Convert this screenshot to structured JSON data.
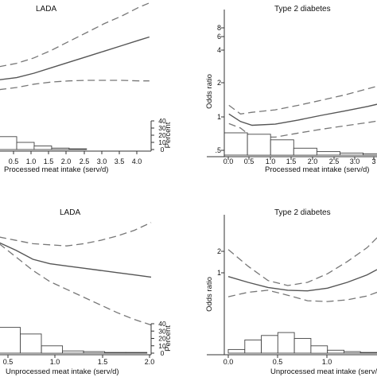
{
  "chart_data": [
    {
      "type": "line",
      "title": "LADA",
      "xlabel": "Processed meat intake (serv/d)",
      "ylabel": "",
      "x_ticks": [
        "0.5",
        "1.0",
        "1.5",
        "2.0",
        "2.5",
        "3.0",
        "3.5",
        "4.0"
      ],
      "y_ticks": [],
      "xlim": [
        0.0,
        4.35
      ],
      "ylim": [
        0.0,
        1.0
      ],
      "series": [
        {
          "role": "estimate",
          "style": "solid",
          "x": [
            0.0,
            0.5,
            1.0,
            1.5,
            2.0,
            2.5,
            3.0,
            3.5,
            4.0,
            4.3
          ],
          "y": [
            0.36,
            0.38,
            0.42,
            0.47,
            0.52,
            0.57,
            0.62,
            0.67,
            0.72,
            0.75
          ]
        },
        {
          "role": "upper_ci",
          "style": "dashed",
          "x": [
            0.0,
            0.5,
            1.0,
            1.5,
            2.0,
            2.5,
            3.0,
            3.5,
            4.0,
            4.3
          ],
          "y": [
            0.48,
            0.51,
            0.56,
            0.63,
            0.71,
            0.79,
            0.87,
            0.94,
            1.02,
            1.06
          ]
        },
        {
          "role": "lower_ci",
          "style": "dashed",
          "x": [
            0.0,
            0.5,
            1.0,
            1.5,
            2.0,
            2.5,
            3.0,
            3.5,
            4.0,
            4.3
          ],
          "y": [
            0.27,
            0.29,
            0.32,
            0.34,
            0.35,
            0.355,
            0.355,
            0.355,
            0.35,
            0.35
          ]
        }
      ],
      "histogram": {
        "ylabel": "Percent",
        "y_ticks": [
          "0",
          "10",
          "20",
          "30",
          "40"
        ],
        "ylim": [
          0,
          40
        ],
        "bin_width": 0.5,
        "bins": [
          {
            "x0": 0.0,
            "value": 18
          },
          {
            "x0": 0.5,
            "value": 10
          },
          {
            "x0": 1.0,
            "value": 5
          },
          {
            "x0": 1.5,
            "value": 2
          },
          {
            "x0": 2.0,
            "value": 1
          }
        ]
      }
    },
    {
      "type": "line",
      "title": "Type 2 diabetes",
      "xlabel": "Processed meat intake (serv/d)",
      "ylabel": "Odds ratio",
      "x_ticks": [
        "0.0",
        "0.5",
        "1.0",
        "1.5",
        "2.0",
        "2.5",
        "3.0",
        "3"
      ],
      "y_ticks": [
        ".5",
        "1",
        "2",
        "4",
        "6",
        "8"
      ],
      "xlim": [
        -0.1,
        3.2
      ],
      "ylim": [
        0.45,
        10.0
      ],
      "log_y": true,
      "series": [
        {
          "role": "estimate",
          "style": "solid",
          "x": [
            0.0,
            0.25,
            0.5,
            1.0,
            1.5,
            2.0,
            2.5,
            3.0,
            3.2
          ],
          "y": [
            1.08,
            0.92,
            0.85,
            0.87,
            0.95,
            1.05,
            1.15,
            1.27,
            1.33
          ]
        },
        {
          "role": "upper_ci",
          "style": "dashed",
          "x": [
            0.0,
            0.25,
            0.5,
            1.0,
            1.5,
            2.0,
            2.5,
            3.0,
            3.2
          ],
          "y": [
            1.3,
            1.08,
            1.12,
            1.18,
            1.3,
            1.45,
            1.62,
            1.85,
            1.95
          ]
        },
        {
          "role": "lower_ci",
          "style": "dashed",
          "x": [
            0.0,
            0.25,
            0.5,
            1.0,
            1.5,
            2.0,
            2.5,
            3.0,
            3.2
          ],
          "y": [
            0.88,
            0.8,
            0.66,
            0.66,
            0.72,
            0.78,
            0.84,
            0.9,
            0.93
          ]
        }
      ],
      "histogram": {
        "ylim": [
          0,
          40
        ],
        "bin_width": 0.5,
        "bins": [
          {
            "x0": -0.1,
            "value": 32
          },
          {
            "x0": 0.4,
            "value": 30
          },
          {
            "x0": 0.9,
            "value": 22
          },
          {
            "x0": 1.4,
            "value": 10
          },
          {
            "x0": 1.9,
            "value": 5
          },
          {
            "x0": 2.4,
            "value": 3
          },
          {
            "x0": 2.9,
            "value": 2
          }
        ]
      }
    },
    {
      "type": "line",
      "title": "LADA",
      "xlabel": "Unprocessed meat intake (serv/d)",
      "ylabel": "",
      "x_ticks": [
        "0.5",
        "1.0",
        "1.5",
        "2.0"
      ],
      "y_ticks": [],
      "xlim": [
        0.2,
        2.0
      ],
      "ylim": [
        0.0,
        1.0
      ],
      "series": [
        {
          "role": "estimate",
          "style": "solid",
          "x": [
            0.2,
            0.4,
            0.6,
            0.8,
            1.0,
            1.2,
            1.4,
            1.6,
            1.8,
            2.0
          ],
          "y": [
            0.75,
            0.68,
            0.6,
            0.56,
            0.54,
            0.52,
            0.5,
            0.48,
            0.46,
            0.44
          ]
        },
        {
          "role": "upper_ci",
          "style": "dashed",
          "x": [
            0.2,
            0.4,
            0.6,
            0.8,
            1.0,
            1.2,
            1.4,
            1.6,
            1.8,
            2.0
          ],
          "y": [
            0.8,
            0.77,
            0.74,
            0.73,
            0.72,
            0.74,
            0.77,
            0.81,
            0.86,
            0.93
          ]
        },
        {
          "role": "lower_ci",
          "style": "dashed",
          "x": [
            0.2,
            0.4,
            0.6,
            0.8,
            1.0,
            1.2,
            1.4,
            1.6,
            1.8,
            2.0
          ],
          "y": [
            0.74,
            0.62,
            0.5,
            0.4,
            0.33,
            0.26,
            0.19,
            0.12,
            0.06,
            0.01
          ]
        }
      ],
      "histogram": {
        "ylabel": "Percent",
        "y_ticks": [
          "0",
          "10",
          "20",
          "30",
          "40"
        ],
        "ylim": [
          0,
          40
        ],
        "bin_width": 0.25,
        "bins": [
          {
            "x0": 0.2,
            "value": 35
          },
          {
            "x0": 0.45,
            "value": 26
          },
          {
            "x0": 0.7,
            "value": 10
          },
          {
            "x0": 0.95,
            "value": 3
          },
          {
            "x0": 1.2,
            "value": 2
          },
          {
            "x0": 1.45,
            "value": 1
          },
          {
            "x0": 1.7,
            "value": 1
          }
        ]
      }
    },
    {
      "type": "line",
      "title": "Type 2 diabetes",
      "xlabel": "Unprocessed meat intake (serv/d)",
      "ylabel": "Odds ratio",
      "x_ticks": [
        "0.0",
        "0.5",
        "1.0"
      ],
      "y_ticks": [
        "1",
        "2"
      ],
      "xlim": [
        0.0,
        1.5
      ],
      "ylim": [
        0.35,
        3.0
      ],
      "log_y": true,
      "series": [
        {
          "role": "estimate",
          "style": "solid",
          "x": [
            0.0,
            0.2,
            0.4,
            0.6,
            0.8,
            1.0,
            1.2,
            1.4,
            1.5
          ],
          "y": [
            1.15,
            1.05,
            0.97,
            0.93,
            0.92,
            0.96,
            1.05,
            1.18,
            1.28
          ]
        },
        {
          "role": "upper_ci",
          "style": "dashed",
          "x": [
            0.0,
            0.2,
            0.4,
            0.6,
            0.8,
            1.0,
            1.2,
            1.4,
            1.5
          ],
          "y": [
            1.75,
            1.35,
            1.08,
            1.0,
            1.05,
            1.2,
            1.45,
            1.8,
            2.1
          ]
        },
        {
          "role": "lower_ci",
          "style": "dashed",
          "x": [
            0.0,
            0.2,
            0.4,
            0.6,
            0.8,
            1.0,
            1.2,
            1.4,
            1.5
          ],
          "y": [
            0.84,
            0.9,
            0.93,
            0.86,
            0.79,
            0.78,
            0.8,
            0.85,
            0.9
          ]
        }
      ],
      "histogram": {
        "ylim": [
          0,
          40
        ],
        "bin_width": 0.1667,
        "bins": [
          {
            "x0": 0.0,
            "value": 5
          },
          {
            "x0": 0.1667,
            "value": 18
          },
          {
            "x0": 0.3333,
            "value": 24
          },
          {
            "x0": 0.5,
            "value": 28
          },
          {
            "x0": 0.6667,
            "value": 20
          },
          {
            "x0": 0.8333,
            "value": 10
          },
          {
            "x0": 1.0,
            "value": 4
          },
          {
            "x0": 1.1667,
            "value": 2
          },
          {
            "x0": 1.3333,
            "value": 1
          }
        ]
      }
    }
  ]
}
